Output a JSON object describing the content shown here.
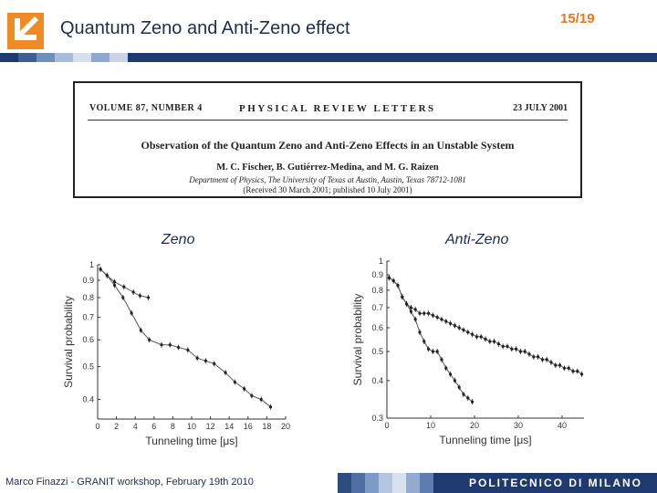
{
  "header": {
    "title": "Quantum Zeno and Anti-Zeno effect",
    "slide_number": "15/19"
  },
  "paper": {
    "volume": "VOLUME 87, NUMBER 4",
    "journal": "PHYSICAL REVIEW LETTERS",
    "date": "23 JULY 2001",
    "title": "Observation of the Quantum Zeno and Anti-Zeno Effects in an Unstable System",
    "authors": "M. C. Fischer, B. Gutiérrez-Medina, and M. G. Raizen",
    "affiliation": "Department of Physics, The University of Texas at Austin, Austin, Texas 78712-1081",
    "received": "(Received 30 March 2001; published 10 July 2001)"
  },
  "plots": {
    "zeno_label": "Zeno",
    "antizeno_label": "Anti-Zeno"
  },
  "chart_data": [
    {
      "type": "scatter",
      "name": "zeno",
      "xlabel": "Tunneling time [μs]",
      "ylabel": "Survival probability",
      "xlim": [
        0,
        20
      ],
      "ylim": [
        0.35,
        1.0
      ],
      "yscale": "log",
      "xticks": [
        "0",
        "2",
        "4",
        "6",
        "8",
        "10",
        "12",
        "14",
        "16",
        "18",
        "20"
      ],
      "yticks": [
        "1",
        "0.9",
        "0.8",
        "0.7",
        "0.6",
        "0.5",
        "0.4"
      ],
      "series": [
        {
          "x": [
            0.3,
            1.0,
            1.8,
            2.8,
            3.8,
            4.5,
            5.4
          ],
          "y": [
            0.97,
            0.93,
            0.89,
            0.86,
            0.83,
            0.81,
            0.8
          ]
        },
        {
          "x": [
            0.3,
            1.0,
            1.8,
            2.7,
            3.6,
            4.6,
            5.5,
            6.8,
            7.7,
            8.6,
            9.6,
            10.6,
            11.5,
            12.4,
            13.6,
            14.6,
            15.6,
            16.4,
            17.4,
            18.4
          ],
          "y": [
            0.97,
            0.93,
            0.87,
            0.8,
            0.72,
            0.64,
            0.6,
            0.58,
            0.58,
            0.57,
            0.56,
            0.53,
            0.52,
            0.51,
            0.48,
            0.45,
            0.43,
            0.41,
            0.4,
            0.38
          ]
        }
      ]
    },
    {
      "type": "scatter",
      "name": "anti-zeno",
      "xlabel": "Tunneling time [μs]",
      "ylabel": "Survival probability",
      "xlim": [
        0,
        45
      ],
      "ylim": [
        0.3,
        1.0
      ],
      "yscale": "log",
      "xticks": [
        "0",
        "10",
        "20",
        "30",
        "40"
      ],
      "yticks": [
        "1",
        "0.9",
        "0.8",
        "0.7",
        "0.6",
        "0.5",
        "0.4",
        "0.3"
      ],
      "series": [
        {
          "x": [
            0.5,
            1.5,
            2.5,
            3.5,
            4.5,
            5.5,
            6.5,
            7.5,
            8.5,
            9.5,
            10.5,
            11.5,
            12.5,
            13.5,
            14.5,
            15.5,
            16.5,
            17.5,
            18.5,
            19.5,
            20.5,
            21.5,
            22.5,
            23.5,
            24.5,
            25.5,
            26.5,
            27.5,
            28.5,
            29.5,
            30.5,
            31.5,
            32.5,
            33.5,
            34.5,
            35.5,
            36.5,
            37.5,
            38.5,
            39.5,
            40.5,
            41.5,
            42.5,
            43.5,
            44.5
          ],
          "y": [
            0.88,
            0.86,
            0.83,
            0.76,
            0.72,
            0.7,
            0.69,
            0.67,
            0.67,
            0.67,
            0.66,
            0.65,
            0.64,
            0.63,
            0.62,
            0.61,
            0.6,
            0.59,
            0.58,
            0.57,
            0.56,
            0.56,
            0.55,
            0.54,
            0.54,
            0.53,
            0.52,
            0.52,
            0.51,
            0.51,
            0.5,
            0.5,
            0.49,
            0.48,
            0.48,
            0.47,
            0.47,
            0.46,
            0.45,
            0.45,
            0.44,
            0.44,
            0.43,
            0.43,
            0.42
          ]
        },
        {
          "x": [
            0.5,
            1.5,
            2.5,
            3.5,
            4.5,
            5.5,
            6.5,
            7.5,
            8.5,
            9.5,
            10.5,
            11.5,
            12.5,
            13.5,
            14.5,
            15.5,
            16.5,
            17.5,
            18.5,
            19.5
          ],
          "y": [
            0.88,
            0.86,
            0.83,
            0.76,
            0.72,
            0.68,
            0.64,
            0.58,
            0.54,
            0.51,
            0.5,
            0.5,
            0.47,
            0.44,
            0.42,
            0.4,
            0.38,
            0.36,
            0.35,
            0.34
          ]
        }
      ]
    }
  ],
  "footer": {
    "text": "Marco Finazzi - GRANIT workshop, February 19th 2010",
    "institution": "POLITECNICO DI MILANO"
  },
  "colors": {
    "title": "#1f2d4d",
    "slide_number": "#e8781e",
    "logo_orange": "#f08a24",
    "bar_dark": "#1f3a6e"
  }
}
